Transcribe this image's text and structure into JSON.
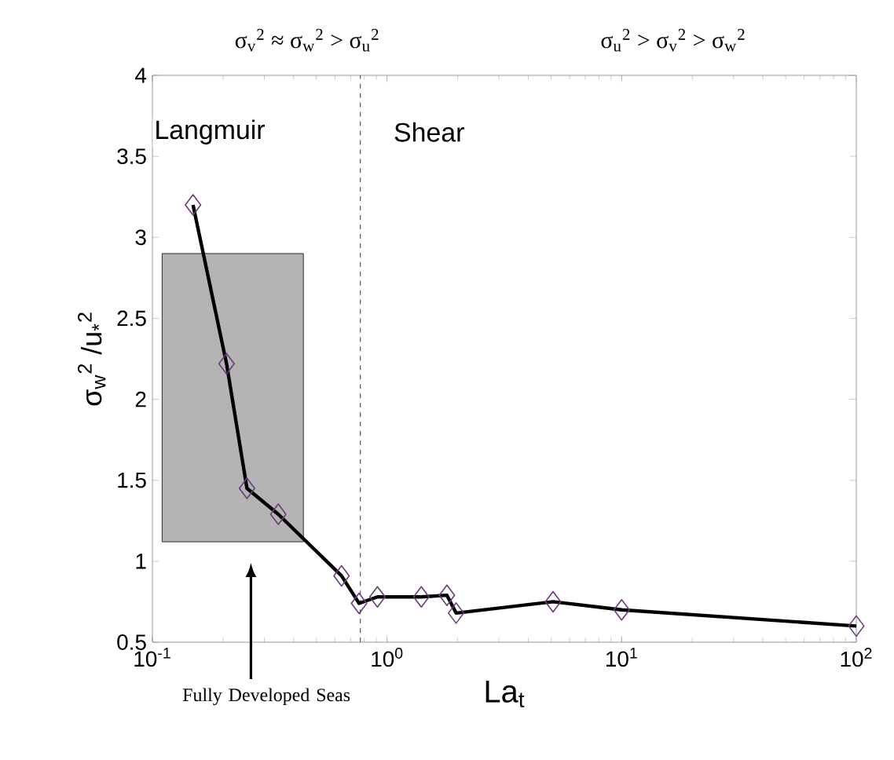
{
  "chart_data": {
    "type": "line",
    "xlabel": "La$_{t}$",
    "ylabel": "σ$_{w}$$^{2}$ /u$_{*}$$^{2}$",
    "log": "x",
    "xlim": [
      0.1,
      100
    ],
    "ylim": [
      0.5,
      4
    ],
    "xticks": [
      {
        "value": 0.1,
        "label": "10$^{-1}$"
      },
      {
        "value": 1,
        "label": "10$^{0}$"
      },
      {
        "value": 10,
        "label": "10$^{1}$"
      },
      {
        "value": 100,
        "label": "10$^{2}$"
      }
    ],
    "yticks": [
      0.5,
      1,
      1.5,
      2,
      2.5,
      3,
      3.5,
      4
    ],
    "grid": false,
    "marker": "diamond",
    "line_style": "solid",
    "series": [
      {
        "type": "area",
        "color": "#b4b4b4",
        "marker": "none",
        "x": [
          0.11,
          0.11,
          0.44,
          0.44,
          0.11
        ],
        "values": [
          1.12,
          2.9,
          2.9,
          1.12,
          1.12
        ]
      },
      {
        "color": "#000000",
        "x": [
          0.149,
          0.207,
          0.253,
          0.344,
          0.64,
          0.76,
          0.91,
          1.4,
          1.8,
          1.97,
          5.1,
          10,
          100
        ],
        "values": [
          3.2,
          2.22,
          1.45,
          1.29,
          0.91,
          0.74,
          0.78,
          0.78,
          0.79,
          0.68,
          0.75,
          0.7,
          0.6
        ]
      }
    ],
    "ref_lines": [
      {
        "axis": "x",
        "value": 0.77,
        "line_style": "dashed",
        "color": "#000000"
      }
    ],
    "annotations": [
      "Langmuir",
      "Shear",
      "σ$_{v}$$^{2}$ ≈ σ$_{w}$$^{2}$ > σ$_{u}$$^{2}$",
      "σ$_{u}$$^{2}$ > σ$_{v}$$^{2}$ > σ$_{w}$$^{2}$",
      "Fully Developed Seas"
    ]
  }
}
